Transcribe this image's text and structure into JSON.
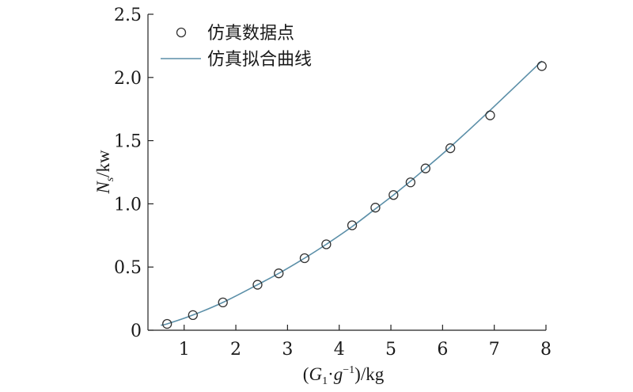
{
  "chart_data": {
    "type": "scatter",
    "xlim": [
      0.3,
      8
    ],
    "ylim": [
      0,
      2.5
    ],
    "x_ticks": [
      1,
      2,
      3,
      4,
      5,
      6,
      7,
      8
    ],
    "y_ticks": [
      0,
      0.5,
      1.0,
      1.5,
      2.0,
      2.5
    ],
    "x_tick_labels": [
      "1",
      "2",
      "3",
      "4",
      "5",
      "6",
      "7",
      "8"
    ],
    "y_tick_labels": [
      "0",
      "0.5",
      "1.0",
      "1.5",
      "2.0",
      "2.5"
    ],
    "xlabel": {
      "open": "(",
      "var": "G",
      "sub": "1",
      "dot": "·",
      "var2": "g",
      "sup": "−1",
      "close": ")/kg"
    },
    "ylabel": {
      "var": "N",
      "sub": "s",
      "unit": "/kw"
    },
    "legend_position": "top-left",
    "series": [
      {
        "name": "仿真数据点",
        "kind": "markers",
        "color": "#333333",
        "points": [
          [
            0.67,
            0.05
          ],
          [
            1.17,
            0.12
          ],
          [
            1.75,
            0.22
          ],
          [
            2.42,
            0.36
          ],
          [
            2.83,
            0.45
          ],
          [
            3.33,
            0.57
          ],
          [
            3.75,
            0.68
          ],
          [
            4.25,
            0.83
          ],
          [
            4.7,
            0.97
          ],
          [
            5.05,
            1.07
          ],
          [
            5.38,
            1.17
          ],
          [
            5.67,
            1.28
          ],
          [
            6.15,
            1.44
          ],
          [
            6.92,
            1.7
          ],
          [
            7.92,
            2.09
          ]
        ]
      },
      {
        "name": "仿真拟合曲线",
        "kind": "line",
        "color": "#5b8fa8",
        "points": [
          [
            0.55,
            0.04
          ],
          [
            0.67,
            0.05
          ],
          [
            1.17,
            0.12
          ],
          [
            1.75,
            0.22
          ],
          [
            2.42,
            0.36
          ],
          [
            2.83,
            0.45
          ],
          [
            3.33,
            0.57
          ],
          [
            3.75,
            0.68
          ],
          [
            4.25,
            0.82
          ],
          [
            4.7,
            0.96
          ],
          [
            5.05,
            1.07
          ],
          [
            5.38,
            1.18
          ],
          [
            5.67,
            1.28
          ],
          [
            6.15,
            1.45
          ],
          [
            6.92,
            1.74
          ],
          [
            7.92,
            2.13
          ]
        ]
      }
    ]
  }
}
